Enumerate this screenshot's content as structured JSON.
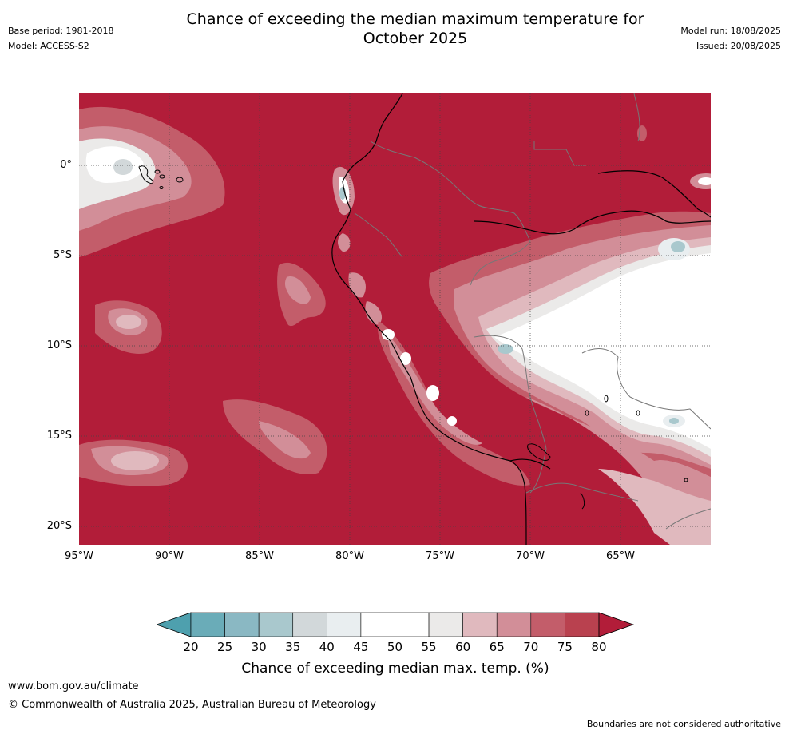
{
  "header": {
    "title_line1": "Chance of exceeding the median maximum temperature for",
    "title_line2": "October 2025",
    "base_period": "Base period: 1981-2018",
    "model": "Model: ACCESS-S2",
    "model_run": "Model run: 18/08/2025",
    "issued": "Issued: 20/08/2025"
  },
  "map": {
    "lat_labels": [
      "0°",
      "5°S",
      "10°S",
      "15°S",
      "20°S"
    ],
    "lon_labels": [
      "95°W",
      "90°W",
      "85°W",
      "80°W",
      "75°W",
      "70°W",
      "65°W"
    ]
  },
  "colorbar": {
    "labels": [
      "20",
      "25",
      "30",
      "35",
      "40",
      "45",
      "50",
      "55",
      "60",
      "65",
      "70",
      "75",
      "80"
    ],
    "colors": [
      "#6aacb8",
      "#8ab8c3",
      "#a9c8cd",
      "#d2d8da",
      "#e9eef0",
      "#ffffff",
      "#ffffff",
      "#ebeae9",
      "#e0b9be",
      "#d28e98",
      "#c35d6a",
      "#b9414f"
    ],
    "low_color": "#4ea0ae",
    "high_color": "#b21d39",
    "title": "Chance of exceeding median max. temp. (%)"
  },
  "footer": {
    "url": "www.bom.gov.au/climate",
    "copyright": "© Commonwealth of Australia 2025, Australian Bureau of Meteorology",
    "disclaimer": "Boundaries are not considered authoritative"
  }
}
